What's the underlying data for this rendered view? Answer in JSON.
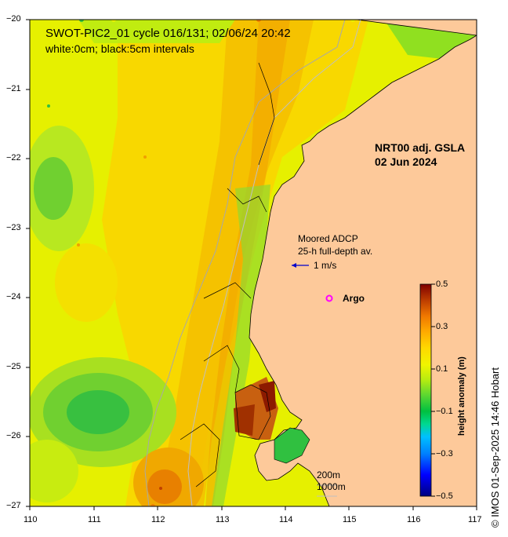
{
  "title": {
    "line1": "SWOT-PIC2_01 cycle 016/131; 02/06/24 20:42",
    "line2": "white:0cm; black:5cm intervals"
  },
  "product": {
    "line1": "NRT00 adj. GSLA",
    "line2": "02 Jun 2024"
  },
  "adcp_legend": {
    "line1": "Moored ADCP",
    "line2": "25-h full-depth av.",
    "scale_label": "1 m/s"
  },
  "argo_legend": {
    "label": "Argo"
  },
  "depth_legend": {
    "line1": "200m",
    "line2": "1000m"
  },
  "colorbar": {
    "title": "height anomaly (m)",
    "ticks": [
      "0.5",
      "0.3",
      "0.1",
      "−0.1",
      "−0.3",
      "−0.5"
    ],
    "range": [
      -0.5,
      0.5
    ],
    "colors": [
      "#000080",
      "#0000ff",
      "#0080ff",
      "#00c0ff",
      "#00e0a0",
      "#00c040",
      "#40d040",
      "#a0e020",
      "#e8f000",
      "#ffe000",
      "#ffb000",
      "#ff8000",
      "#e05000",
      "#b02000",
      "#800000"
    ]
  },
  "credit": "© IMOS 01-Sep-2025 14:46 Hobart",
  "axes": {
    "x_ticks": [
      "110",
      "111",
      "112",
      "113",
      "114",
      "115",
      "116",
      "117"
    ],
    "y_ticks": [
      "−20",
      "−21",
      "−22",
      "−23",
      "−24",
      "−25",
      "−26",
      "−27"
    ],
    "lon_range": [
      110,
      117
    ],
    "lat_range": [
      -27,
      -20
    ]
  },
  "map_colors": {
    "land": "#fdc99a",
    "coast": "#000000",
    "isobath": "#a8a8a8",
    "argo_marker": "#ff00ff",
    "adcp_arrow": "#0000cc"
  }
}
